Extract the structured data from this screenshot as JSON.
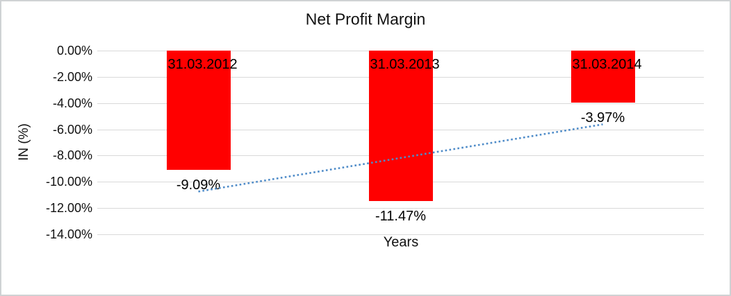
{
  "chart_data": {
    "type": "bar",
    "title": "Net Profit Margin",
    "xlabel": "Years",
    "ylabel": "IN (%)",
    "categories": [
      "31.03.2012",
      "31.03.2013",
      "31.03.2014"
    ],
    "values": [
      -9.09,
      -11.47,
      -3.97
    ],
    "value_labels": [
      "-9.09%",
      "-11.47%",
      "-3.97%"
    ],
    "ylim": [
      0,
      -14
    ],
    "ytick_step": 2,
    "ytick_labels": [
      "0.00%",
      "-2.00%",
      "-4.00%",
      "-6.00%",
      "-8.00%",
      "-10.00%",
      "-12.00%",
      "-14.00%"
    ],
    "grid": true,
    "legend": "none",
    "bar_color": "#ff0000",
    "gridline_color": "#d9d9d9",
    "trendline": {
      "type": "linear",
      "style": "dotted",
      "color": "#4e8bc8",
      "endpoint_values": [
        -10.74,
        -5.62
      ]
    }
  }
}
